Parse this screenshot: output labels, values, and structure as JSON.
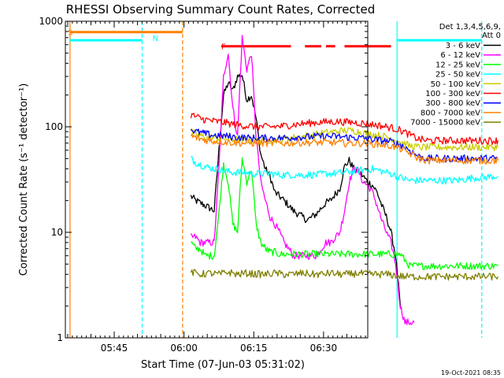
{
  "chart_data": {
    "type": "line",
    "title": "RHESSI Observing Summary Count Rates, Corrected",
    "xlabel": "Start Time (07-Jun-03 05:31:02)",
    "ylabel": "Corrected Count Rate (s⁻¹ detector⁻¹)",
    "yscale": "log",
    "ylim": [
      1,
      1000
    ],
    "xlim_minutes": [
      34.5,
      99.5
    ],
    "x_tick_labels": [
      {
        "label": "05:45",
        "t": 45
      },
      {
        "label": "06:00",
        "t": 60
      },
      {
        "label": "06:15",
        "t": 75
      },
      {
        "label": "06:30",
        "t": 90
      },
      {
        "label": "06:45",
        "t": 105
      },
      {
        "label": "07:00",
        "t": 120
      }
    ],
    "y_tick_labels": [
      {
        "label": "1",
        "v": 1
      },
      {
        "label": "10",
        "v": 10
      },
      {
        "label": "100",
        "v": 100
      },
      {
        "label": "1000",
        "v": 1000
      }
    ],
    "legend_header": [
      "Det 1,3,4,5,6,9,",
      "Att 0"
    ],
    "series": [
      {
        "name": "3 - 6 keV",
        "color": "#000000",
        "x": [
          61.5,
          62.5,
          63.5,
          64.5,
          65.5,
          66.5,
          67.5,
          68.5,
          69.5,
          70.5,
          71.5,
          72.5,
          73.5,
          74.5,
          75.5,
          76.5,
          77.5,
          78.5,
          79.5,
          80.5,
          81.5,
          82.5,
          83.5,
          84.5,
          85.5,
          86.5,
          87.5,
          88.5,
          89.5,
          90.5,
          91.5,
          92.5,
          93.5,
          94.5,
          95.5,
          96.5,
          97.5,
          98.5,
          99.5,
          100.5,
          101.5,
          102.5,
          103.5,
          104.5,
          105.5,
          106.5
        ],
        "values": [
          22,
          20,
          19,
          18,
          17,
          16,
          60,
          200,
          260,
          220,
          300,
          310,
          180,
          200,
          120,
          55,
          40,
          34,
          24,
          22,
          20,
          18,
          16,
          15,
          14,
          13,
          14,
          15,
          17,
          19,
          20,
          23,
          26,
          42,
          48,
          40,
          38,
          34,
          30,
          28,
          24,
          18,
          14,
          10,
          6,
          2
        ]
      },
      {
        "name": "6 - 12 keV",
        "color": "#ff00ff",
        "x": [
          61.5,
          62.5,
          63.5,
          64.5,
          65.5,
          66.5,
          67.5,
          68.5,
          69.5,
          70.5,
          71.5,
          72.5,
          73.5,
          74.5,
          75.5,
          76.5,
          77.5,
          78.5,
          79.5,
          80.5,
          81.5,
          82.5,
          83.5,
          84.5,
          85.5,
          86.5,
          87.5,
          88.5,
          89.5,
          90.5,
          91.5,
          92.5,
          93.5,
          94.5,
          95.5,
          96.5,
          97.5,
          98.5,
          99.5,
          100.5,
          101.5,
          102.5,
          103.5,
          104.5,
          105.5,
          106.5,
          107.5,
          108.5,
          109.5
        ],
        "values": [
          9,
          9,
          8,
          8,
          8,
          8,
          40,
          300,
          500,
          150,
          80,
          700,
          350,
          500,
          80,
          30,
          20,
          14,
          12,
          10,
          8,
          7,
          6,
          6,
          6,
          6,
          6,
          6,
          7,
          8,
          8,
          9,
          10,
          16,
          30,
          40,
          38,
          30,
          28,
          24,
          18,
          13,
          10,
          8,
          5,
          2,
          1.4,
          1.4,
          1.4
        ]
      },
      {
        "name": "12 - 25 keV",
        "color": "#00ff00",
        "x": [
          61.5,
          62.5,
          63.5,
          64.5,
          65.5,
          66.5,
          67.5,
          68.5,
          69.5,
          70.5,
          71.5,
          72.5,
          73.5,
          74.5,
          75.5,
          76.5,
          77.5,
          78.5,
          79.5,
          80.5,
          82.5,
          84.5,
          86.5,
          88.5,
          90.5,
          92.5,
          94.5,
          96.5,
          98.5,
          100.5,
          102.5,
          104.5,
          106.5,
          108.5,
          110.5,
          112.5,
          114.5,
          116.5,
          118.5,
          120.5,
          122.5,
          124.5,
          126.5,
          127.5
        ],
        "values": [
          8,
          7,
          7,
          6,
          6,
          6,
          15,
          45,
          30,
          12,
          10,
          50,
          30,
          40,
          12,
          8,
          7,
          6.5,
          6.5,
          6.2,
          6.2,
          6.2,
          6.2,
          6.2,
          6.2,
          6.2,
          6.2,
          6.2,
          6.2,
          6.2,
          6.2,
          6.2,
          6.2,
          4.8,
          4.8,
          4.8,
          4.8,
          4.8,
          4.8,
          4.8,
          4.8,
          4.8,
          4.8,
          4.8
        ]
      },
      {
        "name": "25 - 50 keV",
        "color": "#00ffff",
        "x": [
          61.5,
          62.5,
          63.5,
          64.5,
          65.5,
          66.5,
          67.5,
          68.5,
          70.5,
          72.5,
          74.5,
          76.5,
          78.5,
          80.5,
          82.5,
          84.5,
          86.5,
          88.5,
          90.5,
          92.5,
          94.5,
          96.5,
          98.5,
          100.5,
          102.5,
          104.5,
          106.5,
          108.5,
          110.5,
          112.5,
          114.5,
          116.5,
          118.5,
          120.5,
          122.5,
          124.5,
          126.5,
          127.5
        ],
        "values": [
          50,
          46,
          44,
          42,
          41,
          40,
          40,
          38,
          37,
          37,
          36,
          36,
          36,
          35,
          35,
          35,
          35,
          35,
          36,
          36,
          37,
          38,
          39,
          40,
          38,
          36,
          33,
          31,
          31,
          31,
          31,
          31,
          31,
          32,
          33,
          33,
          34,
          34
        ]
      },
      {
        "name": "50 - 100 keV",
        "color": "#cccc00",
        "x": [
          61.5,
          62.5,
          63.5,
          64.5,
          65.5,
          66.5,
          68.5,
          70.5,
          72.5,
          74.5,
          76.5,
          78.5,
          80.5,
          82.5,
          84.5,
          86.5,
          88.5,
          90.5,
          92.5,
          94.5,
          96.5,
          98.5,
          100.5,
          102.5,
          104.5,
          106.5,
          108.5,
          110.5,
          112.5,
          114.5,
          116.5,
          118.5,
          120.5,
          122.5,
          124.5,
          126.5,
          127.5
        ],
        "values": [
          90,
          85,
          82,
          80,
          78,
          78,
          77,
          76,
          75,
          74,
          74,
          75,
          76,
          78,
          80,
          82,
          85,
          88,
          90,
          92,
          92,
          88,
          85,
          82,
          78,
          72,
          66,
          64,
          64,
          64,
          64,
          64,
          64,
          64,
          64,
          64,
          64
        ]
      },
      {
        "name": "100 - 300 keV",
        "color": "#ff0000",
        "x": [
          61.5,
          62.5,
          63.5,
          64.5,
          65.5,
          66.5,
          68.5,
          70.5,
          72.5,
          74.5,
          76.5,
          78.5,
          80.5,
          82.5,
          84.5,
          86.5,
          88.5,
          90.5,
          92.5,
          94.5,
          96.5,
          98.5,
          100.5,
          102.5,
          104.5,
          106.5,
          108.5,
          110.5,
          112.5,
          114.5,
          116.5,
          118.5,
          120.5,
          122.5,
          124.5,
          126.5,
          127.5
        ],
        "values": [
          130,
          125,
          120,
          117,
          115,
          113,
          110,
          106,
          103,
          101,
          100,
          100,
          101,
          103,
          106,
          108,
          110,
          111,
          112,
          111,
          110,
          108,
          105,
          102,
          98,
          93,
          84,
          76,
          74,
          74,
          74,
          74,
          74,
          74,
          74,
          74,
          74
        ]
      },
      {
        "name": "300 - 800 keV",
        "color": "#0000ff",
        "x": [
          61.5,
          62.5,
          63.5,
          64.5,
          65.5,
          66.5,
          68.5,
          70.5,
          72.5,
          74.5,
          76.5,
          78.5,
          80.5,
          82.5,
          84.5,
          86.5,
          88.5,
          90.5,
          92.5,
          94.5,
          96.5,
          98.5,
          100.5,
          102.5,
          104.5,
          106.5,
          108.5,
          110.5,
          112.5,
          114.5,
          116.5,
          118.5,
          120.5,
          122.5,
          124.5,
          126.5,
          127.5
        ],
        "values": [
          95,
          90,
          88,
          86,
          84,
          83,
          82,
          80,
          79,
          78,
          78,
          78,
          78,
          79,
          80,
          80,
          81,
          81,
          81,
          80,
          79,
          78,
          76,
          74,
          72,
          68,
          60,
          52,
          50,
          50,
          50,
          50,
          50,
          50,
          50,
          50,
          50
        ]
      },
      {
        "name": "800 - 7000 keV",
        "color": "#ff8000",
        "x": [
          61.5,
          62.5,
          63.5,
          64.5,
          65.5,
          66.5,
          68.5,
          70.5,
          72.5,
          74.5,
          76.5,
          78.5,
          80.5,
          82.5,
          84.5,
          86.5,
          88.5,
          90.5,
          92.5,
          94.5,
          96.5,
          98.5,
          100.5,
          102.5,
          104.5,
          106.5,
          108.5,
          110.5,
          112.5,
          114.5,
          116.5,
          118.5,
          120.5,
          122.5,
          124.5,
          126.5,
          127.5
        ],
        "values": [
          82,
          79,
          77,
          75,
          74,
          73,
          72,
          71,
          70,
          70,
          70,
          70,
          70,
          70,
          71,
          71,
          71,
          71,
          71,
          70,
          70,
          70,
          69,
          68,
          66,
          62,
          56,
          50,
          48,
          48,
          48,
          48,
          48,
          48,
          48,
          48,
          48
        ]
      },
      {
        "name": "7000 - 15000 keV",
        "color": "#808000",
        "x": [
          61.5,
          63.5,
          65.5,
          67.5,
          69.5,
          71.5,
          73.5,
          75.5,
          77.5,
          79.5,
          81.5,
          83.5,
          85.5,
          87.5,
          89.5,
          91.5,
          93.5,
          95.5,
          97.5,
          99.5,
          101.5,
          103.5,
          105.5,
          107.5,
          109.5,
          111.5,
          113.5,
          115.5,
          117.5,
          119.5,
          121.5,
          123.5,
          125.5,
          127.5
        ],
        "values": [
          4.2,
          4.0,
          4.1,
          4.0,
          4.2,
          4.0,
          4.1,
          4.0,
          4.0,
          4.1,
          4.0,
          4.0,
          4.1,
          4.0,
          4.0,
          4.1,
          4.0,
          4.0,
          4.1,
          4.0,
          4.0,
          4.0,
          3.9,
          3.8,
          3.8,
          3.8,
          3.8,
          3.8,
          3.8,
          3.8,
          3.8,
          3.8,
          3.8,
          3.8
        ]
      }
    ],
    "annotations": [
      {
        "text": "S",
        "color": "#ff8000",
        "t": 34.5,
        "v": 790
      },
      {
        "text": "N",
        "color": "#00ffff",
        "t": 52.7,
        "v": 700
      },
      {
        "text": "F",
        "color": "#ff0000",
        "t": 67.5,
        "v": 580
      }
    ],
    "overlays": {
      "saa_segment": {
        "t_start": 35.5,
        "t_end": 59.7,
        "level": 790,
        "color": "#ff8000"
      },
      "night_segments": [
        {
          "t_start": 35.5,
          "t_end": 51.0,
          "level": 660,
          "color": "#00ffff"
        },
        {
          "t_start": 105.8,
          "t_end": 124.0,
          "level": 660,
          "color": "#00ffff"
        }
      ],
      "flare_segments": [
        {
          "t_start": 68.0,
          "t_end": 83.0,
          "level": 580,
          "color": "#ff0000"
        },
        {
          "t_start": 86.0,
          "t_end": 89.5,
          "level": 580,
          "color": "#ff0000"
        },
        {
          "t_start": 90.5,
          "t_end": 92.5,
          "level": 580,
          "color": "#ff0000"
        },
        {
          "t_start": 94.5,
          "t_end": 104.5,
          "level": 580,
          "color": "#ff0000"
        }
      ],
      "vertical_lines": [
        {
          "t": 35.5,
          "color": "#ff8000",
          "dashed": false
        },
        {
          "t": 51.0,
          "color": "#00ffff",
          "dashed": true
        },
        {
          "t": 59.7,
          "color": "#ff8000",
          "dashed": true
        },
        {
          "t": 105.8,
          "color": "#00ffff",
          "dashed": false
        },
        {
          "t": 124.0,
          "color": "#00ffff",
          "dashed": true
        }
      ]
    }
  },
  "footer": {
    "date_stamp": "19-Oct-2021 08:35"
  }
}
